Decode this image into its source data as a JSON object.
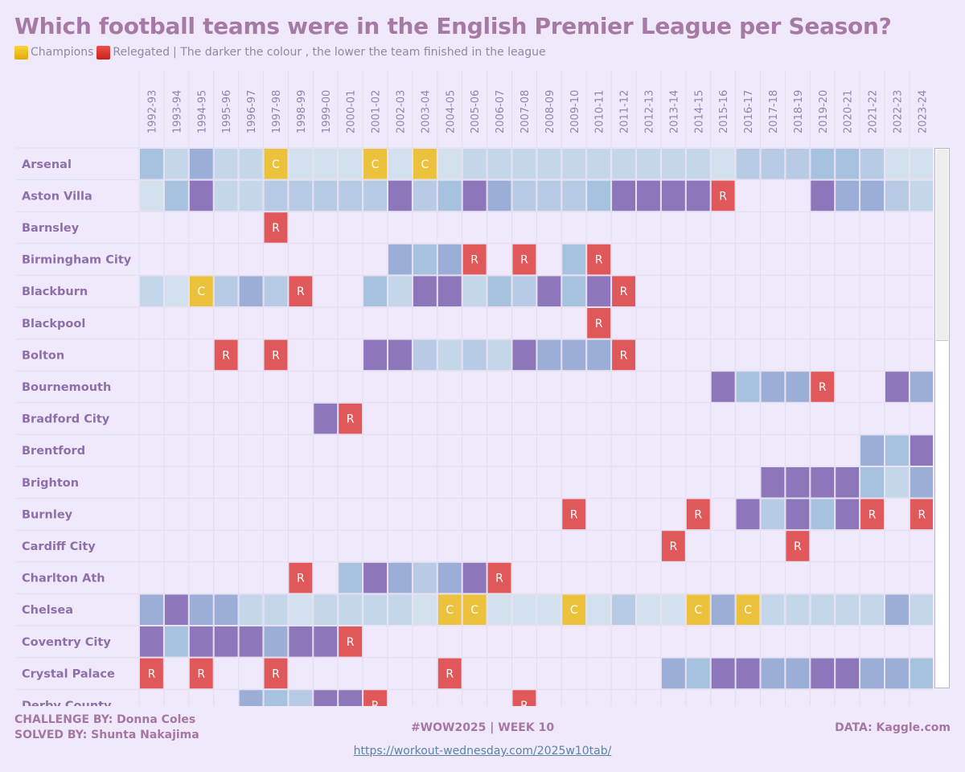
{
  "title": "Which football teams were in the English Premier League per Season?",
  "subtitle": {
    "champions_label": "Champions",
    "relegated_label": "Relegated",
    "note": "| The darker the colour , the lower the team finished in the league"
  },
  "footer": {
    "challenge": "CHALLENGE BY: Donna Coles",
    "solved": "SOLVED BY: Shunta Nakajima",
    "week": "#WOW2025 | WEEK 10",
    "data_source": "DATA: Kaggle.com",
    "link": "https://workout-wednesday.com/2025w10tab/"
  },
  "colors": {
    "background": "#efe9fb",
    "champions": "#ecc23c",
    "relegated": "#e0585a",
    "finish_scale": [
      "#d3e1ef",
      "#c3d6ea",
      "#b7cbe4",
      "#a6c2df",
      "#9aaed7",
      "#8e76bb"
    ]
  },
  "chart_data": {
    "type": "heatmap",
    "title": "Which football teams were in the English Premier League per Season?",
    "value_legend": {
      "C": "Champions",
      "R": "Relegated",
      "0": "lightest = highest finish",
      "5": "darkest = lowest finish"
    },
    "seasons": [
      "1992-93",
      "1993-94",
      "1994-95",
      "1995-96",
      "1996-97",
      "1997-98",
      "1998-99",
      "1999-00",
      "2000-01",
      "2001-02",
      "2002-03",
      "2003-04",
      "2004-05",
      "2005-06",
      "2006-07",
      "2007-08",
      "2008-09",
      "2009-10",
      "2010-11",
      "2011-12",
      "2012-13",
      "2013-14",
      "2014-15",
      "2015-16",
      "2016-17",
      "2017-18",
      "2018-19",
      "2019-20",
      "2020-21",
      "2021-22",
      "2022-23",
      "2023-24"
    ],
    "teams": [
      {
        "name": "Arsenal",
        "cells": [
          "3",
          "1",
          "4",
          "1",
          "1",
          "C",
          "0",
          "0",
          "0",
          "C",
          "0",
          "C",
          "0",
          "1",
          "1",
          "1",
          "1",
          "1",
          "1",
          "1",
          "1",
          "1",
          "1",
          "0",
          "2",
          "2",
          "2",
          "3",
          "3",
          "2",
          "0",
          "0"
        ]
      },
      {
        "name": "Aston Villa",
        "cells": [
          "0",
          "3",
          "5",
          "1",
          "1",
          "2",
          "2",
          "2",
          "2",
          "2",
          "5",
          "2",
          "3",
          "5",
          "4",
          "2",
          "2",
          "2",
          "3",
          "5",
          "5",
          "5",
          "5",
          "R",
          "",
          "",
          "",
          "5",
          "4",
          "4",
          "2",
          "1"
        ]
      },
      {
        "name": "Barnsley",
        "cells": [
          "",
          "",
          "",
          "",
          "",
          "R",
          "",
          "",
          "",
          "",
          "",
          "",
          "",
          "",
          "",
          "",
          "",
          "",
          "",
          "",
          "",
          "",
          "",
          "",
          "",
          "",
          "",
          "",
          "",
          "",
          "",
          ""
        ]
      },
      {
        "name": "Birmingham City",
        "cells": [
          "",
          "",
          "",
          "",
          "",
          "",
          "",
          "",
          "",
          "",
          "4",
          "3",
          "4",
          "R",
          "",
          "R",
          "",
          "3",
          "R",
          "",
          "",
          "",
          "",
          "",
          "",
          "",
          "",
          "",
          "",
          "",
          "",
          ""
        ]
      },
      {
        "name": "Blackburn",
        "cells": [
          "1",
          "0",
          "C",
          "2",
          "4",
          "2",
          "R",
          "",
          "",
          "3",
          "1",
          "5",
          "5",
          "1",
          "3",
          "2",
          "5",
          "3",
          "5",
          "R",
          "",
          "",
          "",
          "",
          "",
          "",
          "",
          "",
          "",
          "",
          "",
          ""
        ]
      },
      {
        "name": "Blackpool",
        "cells": [
          "",
          "",
          "",
          "",
          "",
          "",
          "",
          "",
          "",
          "",
          "",
          "",
          "",
          "",
          "",
          "",
          "",
          "",
          "R",
          "",
          "",
          "",
          "",
          "",
          "",
          "",
          "",
          "",
          "",
          "",
          "",
          ""
        ]
      },
      {
        "name": "Bolton",
        "cells": [
          "",
          "",
          "",
          "R",
          "",
          "R",
          "",
          "",
          "",
          "5",
          "5",
          "2",
          "1",
          "2",
          "1",
          "5",
          "4",
          "4",
          "4",
          "R",
          "",
          "",
          "",
          "",
          "",
          "",
          "",
          "",
          "",
          "",
          "",
          ""
        ]
      },
      {
        "name": "Bournemouth",
        "cells": [
          "",
          "",
          "",
          "",
          "",
          "",
          "",
          "",
          "",
          "",
          "",
          "",
          "",
          "",
          "",
          "",
          "",
          "",
          "",
          "",
          "",
          "",
          "",
          "5",
          "3",
          "4",
          "4",
          "R",
          "",
          "",
          "5",
          "4"
        ]
      },
      {
        "name": "Bradford City",
        "cells": [
          "",
          "",
          "",
          "",
          "",
          "",
          "",
          "5",
          "R",
          "",
          "",
          "",
          "",
          "",
          "",
          "",
          "",
          "",
          "",
          "",
          "",
          "",
          "",
          "",
          "",
          "",
          "",
          "",
          "",
          "",
          "",
          ""
        ]
      },
      {
        "name": "Brentford",
        "cells": [
          "",
          "",
          "",
          "",
          "",
          "",
          "",
          "",
          "",
          "",
          "",
          "",
          "",
          "",
          "",
          "",
          "",
          "",
          "",
          "",
          "",
          "",
          "",
          "",
          "",
          "",
          "",
          "",
          "",
          "4",
          "3",
          "5"
        ]
      },
      {
        "name": "Brighton",
        "cells": [
          "",
          "",
          "",
          "",
          "",
          "",
          "",
          "",
          "",
          "",
          "",
          "",
          "",
          "",
          "",
          "",
          "",
          "",
          "",
          "",
          "",
          "",
          "",
          "",
          "",
          "5",
          "5",
          "5",
          "5",
          "3",
          "1",
          "4"
        ]
      },
      {
        "name": "Burnley",
        "cells": [
          "",
          "",
          "",
          "",
          "",
          "",
          "",
          "",
          "",
          "",
          "",
          "",
          "",
          "",
          "",
          "",
          "",
          "R",
          "",
          "",
          "",
          "",
          "R",
          "",
          "5",
          "2",
          "5",
          "3",
          "5",
          "R",
          "",
          "R"
        ]
      },
      {
        "name": "Cardiff City",
        "cells": [
          "",
          "",
          "",
          "",
          "",
          "",
          "",
          "",
          "",
          "",
          "",
          "",
          "",
          "",
          "",
          "",
          "",
          "",
          "",
          "",
          "",
          "R",
          "",
          "",
          "",
          "",
          "R",
          "",
          "",
          "",
          "",
          ""
        ]
      },
      {
        "name": "Charlton Ath",
        "cells": [
          "",
          "",
          "",
          "",
          "",
          "",
          "R",
          "",
          "3",
          "5",
          "4",
          "2",
          "4",
          "5",
          "R",
          "",
          "",
          "",
          "",
          "",
          "",
          "",
          "",
          "",
          "",
          "",
          "",
          "",
          "",
          "",
          "",
          ""
        ]
      },
      {
        "name": "Chelsea",
        "cells": [
          "4",
          "5",
          "4",
          "4",
          "1",
          "1",
          "0",
          "1",
          "1",
          "1",
          "1",
          "0",
          "C",
          "C",
          "0",
          "0",
          "0",
          "C",
          "0",
          "2",
          "0",
          "0",
          "C",
          "4",
          "C",
          "1",
          "1",
          "1",
          "1",
          "1",
          "4",
          "1"
        ]
      },
      {
        "name": "Coventry City",
        "cells": [
          "5",
          "3",
          "5",
          "5",
          "5",
          "4",
          "5",
          "5",
          "R",
          "",
          "",
          "",
          "",
          "",
          "",
          "",
          "",
          "",
          "",
          "",
          "",
          "",
          "",
          "",
          "",
          "",
          "",
          "",
          "",
          "",
          "",
          ""
        ]
      },
      {
        "name": "Crystal Palace",
        "cells": [
          "R",
          "",
          "R",
          "",
          "",
          "R",
          "",
          "",
          "",
          "",
          "",
          "",
          "R",
          "",
          "",
          "",
          "",
          "",
          "",
          "",
          "",
          "4",
          "3",
          "5",
          "5",
          "4",
          "4",
          "5",
          "5",
          "4",
          "4",
          "3"
        ]
      },
      {
        "name": "Derby County",
        "cells": [
          "",
          "",
          "",
          "",
          "4",
          "3",
          "2",
          "5",
          "5",
          "R",
          "",
          "",
          "",
          "",
          "",
          "R",
          "",
          "",
          "",
          "",
          "",
          "",
          "",
          "",
          "",
          "",
          "",
          "",
          "",
          "",
          "",
          ""
        ]
      }
    ]
  }
}
